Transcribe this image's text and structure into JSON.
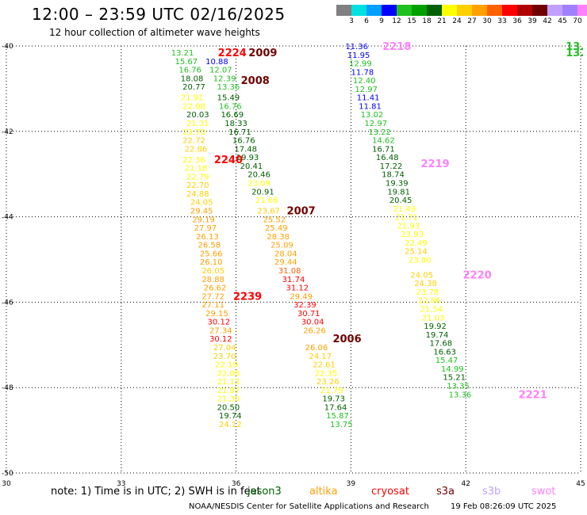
{
  "title": "12:00 – 23:59 UTC 02/16/2025",
  "subtitle": "12 hour collection of altimeter wave heights",
  "colorbar": {
    "colors": [
      "#808080",
      "#00e0e0",
      "#00a0ff",
      "#0000ff",
      "#20c020",
      "#00a000",
      "#006000",
      "#ffff00",
      "#ffd000",
      "#ffa000",
      "#ff6000",
      "#ff0000",
      "#b00000",
      "#700000",
      "#c0a0ff",
      "#a080ff",
      "#ff80ff",
      "#000000"
    ],
    "labels": [
      "3",
      "6",
      "9",
      "12",
      "15",
      "18",
      "21",
      "24",
      "27",
      "30",
      "33",
      "36",
      "39",
      "42",
      "45",
      "70",
      "(ft)"
    ]
  },
  "map": {
    "x_ticks": [
      "30",
      "33",
      "36",
      "39",
      "42",
      "45"
    ],
    "y_ticks": [
      "-40",
      "-42",
      "-44",
      "-46",
      "-48",
      "-50"
    ],
    "lon_range": [
      30,
      45
    ],
    "lat_range": [
      -50,
      -40
    ]
  },
  "passes": [
    {
      "label": "2009",
      "label_color": "#700000",
      "label_lon": 36.7,
      "label_lat": -40.15,
      "points": [
        [
          "13.21",
          "#20c020",
          34.6,
          -40.15
        ],
        [
          "15.67",
          "#20c020",
          34.7,
          -40.35
        ],
        [
          "16.76",
          "#20c020",
          34.8,
          -40.55
        ],
        [
          "18.08",
          "#006000",
          34.85,
          -40.75
        ],
        [
          "20.77",
          "#006000",
          34.9,
          -40.95
        ],
        [
          "21.91",
          "#ffff00",
          34.85,
          -41.2
        ],
        [
          "22.08",
          "#ffff00",
          34.9,
          -41.4
        ],
        [
          "20.03",
          "#006000",
          35.0,
          -41.6
        ],
        [
          "21.31",
          "#ffff00",
          35.0,
          -41.8
        ],
        [
          "23.70",
          "#ffff00",
          34.9,
          -42.0
        ],
        [
          "22.72",
          "#ffd000",
          34.9,
          -42.2
        ],
        [
          "22.86",
          "#ffd000",
          34.95,
          -42.4
        ]
      ]
    },
    {
      "label": "2224",
      "label_color": "#ff0000",
      "label_lon": 35.9,
      "label_lat": -40.15,
      "points": []
    },
    {
      "label": "2008",
      "label_color": "#700000",
      "label_lon": 36.5,
      "label_lat": -40.8,
      "points": [
        [
          "10.88",
          "#0000ff",
          35.5,
          -40.35
        ],
        [
          "12.07",
          "#20c020",
          35.6,
          -40.55
        ],
        [
          "12.39",
          "#20c020",
          35.7,
          -40.75
        ],
        [
          "13.36",
          "#20c020",
          35.8,
          -40.95
        ],
        [
          "15.49",
          "#006000",
          35.8,
          -41.2
        ],
        [
          "16.76",
          "#20c020",
          35.85,
          -41.4
        ],
        [
          "16.69",
          "#006000",
          35.9,
          -41.6
        ],
        [
          "18.33",
          "#006000",
          36.0,
          -41.8
        ],
        [
          "16.71",
          "#006000",
          36.1,
          -42.0
        ],
        [
          "16.76",
          "#006000",
          36.2,
          -42.2
        ],
        [
          "17.48",
          "#006000",
          36.25,
          -42.4
        ],
        [
          "19.93",
          "#006000",
          36.3,
          -42.6
        ],
        [
          "20.41",
          "#006000",
          36.4,
          -42.8
        ],
        [
          "20.46",
          "#006000",
          36.6,
          -43.0
        ],
        [
          "23.09",
          "#ffff00",
          36.6,
          -43.2
        ],
        [
          "20.91",
          "#006000",
          36.7,
          -43.4
        ],
        [
          "21.66",
          "#ffff00",
          36.8,
          -43.6
        ]
      ]
    },
    {
      "label": "2240",
      "label_color": "#ff0000",
      "label_lon": 35.8,
      "label_lat": -42.65,
      "points": [
        [
          "22.36",
          "#ffff00",
          34.9,
          -42.65
        ],
        [
          "21.18",
          "#ffff00",
          34.95,
          -42.85
        ],
        [
          "22.79",
          "#ffff00",
          35.0,
          -43.05
        ],
        [
          "22.70",
          "#ffd000",
          35.0,
          -43.25
        ],
        [
          "24.88",
          "#ffd000",
          35.0,
          -43.45
        ],
        [
          "24.05",
          "#ffd000",
          35.1,
          -43.65
        ],
        [
          "29.45",
          "#ffa000",
          35.1,
          -43.85
        ],
        [
          "29.19",
          "#ffa000",
          35.15,
          -44.05
        ],
        [
          "27.97",
          "#ffa000",
          35.2,
          -44.25
        ],
        [
          "26.13",
          "#ffa000",
          35.25,
          -44.45
        ],
        [
          "26.58",
          "#ffa000",
          35.3,
          -44.65
        ],
        [
          "25.66",
          "#ffa000",
          35.35,
          -44.85
        ],
        [
          "26.10",
          "#ffa000",
          35.35,
          -45.05
        ],
        [
          "26.05",
          "#ffd000",
          35.4,
          -45.25
        ],
        [
          "28.88",
          "#ffa000",
          35.4,
          -45.45
        ],
        [
          "26.62",
          "#ffa000",
          35.45,
          -45.65
        ],
        [
          "27.72",
          "#ffa000",
          35.4,
          -45.85
        ],
        [
          "27.11",
          "#ffa000",
          35.4,
          -46.05
        ]
      ]
    },
    {
      "label": "2007",
      "label_color": "#700000",
      "label_lon": 37.7,
      "label_lat": -43.85,
      "points": [
        [
          "23.67",
          "#ffd000",
          36.85,
          -43.85
        ],
        [
          "25.52",
          "#ffa000",
          37.0,
          -44.05
        ],
        [
          "25.49",
          "#ffa000",
          37.05,
          -44.25
        ],
        [
          "28.38",
          "#ffa000",
          37.1,
          -44.45
        ],
        [
          "25.09",
          "#ffa000",
          37.2,
          -44.65
        ],
        [
          "28.04",
          "#ffa000",
          37.3,
          -44.85
        ],
        [
          "29.44",
          "#ffa000",
          37.3,
          -45.05
        ],
        [
          "31.08",
          "#ff6000",
          37.4,
          -45.25
        ],
        [
          "31.74",
          "#ff0000",
          37.5,
          -45.45
        ],
        [
          "31.12",
          "#ff0000",
          37.6,
          -45.65
        ],
        [
          "29.49",
          "#ffa000",
          37.7,
          -45.85
        ],
        [
          "32.39",
          "#ff0000",
          37.8,
          -46.05
        ],
        [
          "30.71",
          "#ff0000",
          37.9,
          -46.25
        ],
        [
          "30.04",
          "#ff0000",
          38.0,
          -46.45
        ],
        [
          "26.26",
          "#ffa000",
          38.05,
          -46.65
        ]
      ]
    },
    {
      "label": "2239",
      "label_color": "#ff0000",
      "label_lon": 36.3,
      "label_lat": -45.85,
      "points": [
        [
          "29.15",
          "#ffa000",
          35.5,
          -46.25
        ],
        [
          "30.12",
          "#ff0000",
          35.55,
          -46.45
        ],
        [
          "27.34",
          "#ffa000",
          35.6,
          -46.65
        ],
        [
          "30.12",
          "#ff0000",
          35.6,
          -46.85
        ],
        [
          "27.04",
          "#ffd000",
          35.7,
          -47.05
        ],
        [
          "23.70",
          "#ffd000",
          35.7,
          -47.25
        ],
        [
          "22.19",
          "#ffff00",
          35.75,
          -47.45
        ],
        [
          "22.08",
          "#ffff00",
          35.8,
          -47.65
        ],
        [
          "21.13",
          "#ffff00",
          35.8,
          -47.85
        ],
        [
          "21.87",
          "#ffff00",
          35.8,
          -48.05
        ],
        [
          "21.30",
          "#ffff00",
          35.8,
          -48.25
        ],
        [
          "20.50",
          "#006000",
          35.8,
          -48.45
        ],
        [
          "19.74",
          "#006000",
          35.85,
          -48.65
        ],
        [
          "24.12",
          "#ffd000",
          35.85,
          -48.85
        ]
      ]
    },
    {
      "label": "2006",
      "label_color": "#700000",
      "label_lon": 38.9,
      "label_lat": -46.85,
      "points": [
        [
          "26.06",
          "#ffa000",
          38.1,
          -47.05
        ],
        [
          "24.17",
          "#ffd000",
          38.2,
          -47.25
        ],
        [
          "22.61",
          "#ffd000",
          38.3,
          -47.45
        ],
        [
          "22.35",
          "#ffff00",
          38.35,
          -47.65
        ],
        [
          "23.26",
          "#ffd000",
          38.4,
          -47.85
        ],
        [
          "21.79",
          "#ffff00",
          38.5,
          -48.05
        ],
        [
          "19.73",
          "#006000",
          38.55,
          -48.25
        ],
        [
          "17.64",
          "#006000",
          38.6,
          -48.45
        ],
        [
          "15.87",
          "#20c020",
          38.65,
          -48.65
        ],
        [
          "13.75",
          "#20c020",
          38.75,
          -48.85
        ]
      ]
    },
    {
      "label": "2219",
      "label_color": "#ff80ff",
      "label_lon": 41.2,
      "label_lat": -42.75,
      "points": [
        [
          "11.36",
          "#0000ff",
          39.15,
          -40.0
        ],
        [
          "11.95",
          "#0000ff",
          39.2,
          -40.2
        ],
        [
          "12.99",
          "#20c020",
          39.25,
          -40.4
        ],
        [
          "11.78",
          "#0000ff",
          39.3,
          -40.6
        ],
        [
          "12.40",
          "#20c020",
          39.35,
          -40.8
        ],
        [
          "12.97",
          "#20c020",
          39.4,
          -41.0
        ],
        [
          "11.41",
          "#0000ff",
          39.45,
          -41.2
        ],
        [
          "11.81",
          "#0000ff",
          39.5,
          -41.4
        ],
        [
          "13.02",
          "#20c020",
          39.55,
          -41.6
        ],
        [
          "12.97",
          "#20c020",
          39.65,
          -41.8
        ],
        [
          "13.22",
          "#20c020",
          39.75,
          -42.0
        ],
        [
          "14.62",
          "#20c020",
          39.85,
          -42.2
        ],
        [
          "16.71",
          "#006000",
          39.85,
          -42.4
        ],
        [
          "16.48",
          "#006000",
          39.95,
          -42.6
        ],
        [
          "17.22",
          "#006000",
          40.05,
          -42.8
        ],
        [
          "18.74",
          "#006000",
          40.1,
          -43.0
        ],
        [
          "19.39",
          "#006000",
          40.2,
          -43.2
        ],
        [
          "19.81",
          "#006000",
          40.25,
          -43.4
        ],
        [
          "20.45",
          "#006000",
          40.3,
          -43.6
        ],
        [
          "21.49",
          "#ffff00",
          40.4,
          -43.8
        ],
        [
          "21.71",
          "#ffff00",
          40.45,
          -44.0
        ],
        [
          "21.93",
          "#ffff00",
          40.5,
          -44.2
        ],
        [
          "23.93",
          "#ffff00",
          40.6,
          -44.4
        ],
        [
          "22.49",
          "#ffff00",
          40.7,
          -44.6
        ],
        [
          "25.14",
          "#ffd000",
          40.7,
          -44.8
        ]
      ]
    },
    {
      "label": "2218",
      "label_color": "#ff80ff",
      "label_lon": 40.2,
      "label_lat": -40.0,
      "points": []
    },
    {
      "label": "2220",
      "label_color": "#ff80ff",
      "label_lon": 42.3,
      "label_lat": -45.35,
      "points": [
        [
          "23.80",
          "#ffff00",
          40.8,
          -45.0
        ],
        [
          "24.05",
          "#ffd000",
          40.85,
          -45.35
        ],
        [
          "24.38",
          "#ffd000",
          40.95,
          -45.55
        ],
        [
          "23.78",
          "#ffff00",
          41.0,
          -45.75
        ],
        [
          "22.86",
          "#ffff00",
          41.05,
          -45.95
        ],
        [
          "21.54",
          "#ffff00",
          41.1,
          -46.15
        ],
        [
          "21.03",
          "#ffff00",
          41.15,
          -46.35
        ],
        [
          "19.92",
          "#006000",
          41.2,
          -46.55
        ],
        [
          "19.74",
          "#006000",
          41.25,
          -46.75
        ],
        [
          "17.68",
          "#006000",
          41.35,
          -46.95
        ],
        [
          "16.63",
          "#006000",
          41.45,
          -47.15
        ],
        [
          "15.47",
          "#20c020",
          41.5,
          -47.35
        ],
        [
          "14.99",
          "#20c020",
          41.65,
          -47.55
        ],
        [
          "15.21",
          "#006000",
          41.7,
          -47.75
        ],
        [
          "13.35",
          "#20c020",
          41.8,
          -47.95
        ],
        [
          "13.36",
          "#20c020",
          41.85,
          -48.15
        ]
      ]
    },
    {
      "label": "2221",
      "label_color": "#ff80ff",
      "label_lon": 43.75,
      "label_lat": -48.15,
      "points": []
    },
    {
      "label": "13.",
      "label_color": "#20c020",
      "label_lon": 44.85,
      "label_lat": -40.0,
      "points": []
    },
    {
      "label": "13.",
      "label_color": "#20c020",
      "label_lon": 44.85,
      "label_lat": -40.15,
      "points": []
    }
  ],
  "note": "note: 1) Time is in UTC; 2) SWH is in feet",
  "satellites": [
    {
      "name": "jason3",
      "color": "#006000"
    },
    {
      "name": "altika",
      "color": "#ffa000"
    },
    {
      "name": "cryosat",
      "color": "#ff0000"
    },
    {
      "name": "s3a",
      "color": "#700000"
    },
    {
      "name": "s3b",
      "color": "#c0a0ff"
    },
    {
      "name": "swot",
      "color": "#ff80ff"
    }
  ],
  "footer_left": "NOAA/NESDIS Center for Satellite Applications and Research",
  "footer_right": "19 Feb 08:26:09 UTC 2025"
}
